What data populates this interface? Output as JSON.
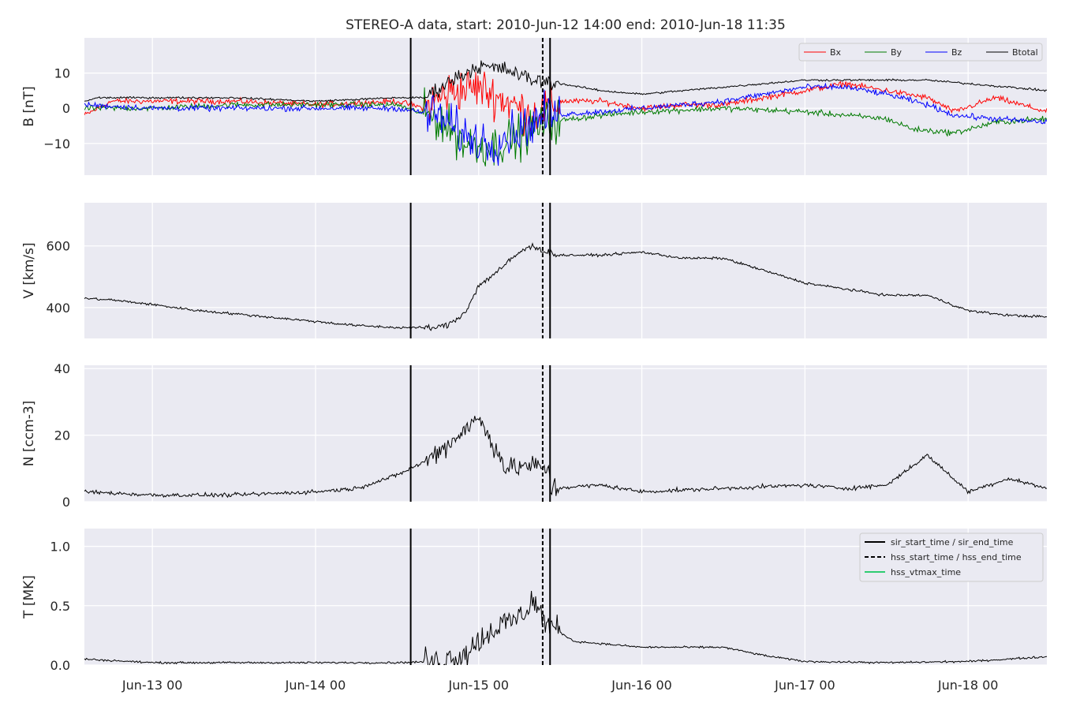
{
  "chart_data": {
    "type": "line",
    "title": "STEREO-A data, start: 2010-Jun-12 14:00  end: 2010-Jun-18 11:35",
    "time_range": {
      "start": "2010-06-12 14:00",
      "end": "2010-06-18 11:35"
    },
    "x_tick_labels": [
      "Jun-13 00",
      "Jun-14 00",
      "Jun-15 00",
      "Jun-16 00",
      "Jun-17 00",
      "Jun-18 00"
    ],
    "x_ticks": [
      "2010-06-13 00:00",
      "2010-06-14 00:00",
      "2010-06-15 00:00",
      "2010-06-16 00:00",
      "2010-06-17 00:00",
      "2010-06-18 00:00"
    ],
    "event_lines": [
      {
        "label": "sir_start_time / sir_end_time",
        "style": "solid",
        "color": "#000000",
        "times": [
          "2010-06-14 14:00",
          "2010-06-15 10:30"
        ]
      },
      {
        "label": "hss_start_time / hss_end_time",
        "style": "dashed",
        "color": "#000000",
        "times": [
          "2010-06-15 09:25"
        ]
      },
      {
        "label": "hss_vtmax_time",
        "style": "solid",
        "color": "#2ecc71",
        "times": []
      }
    ],
    "panels": [
      {
        "ylabel": "B [nT]",
        "ylim": [
          -19,
          20
        ],
        "yticks": [
          -10,
          0,
          10
        ],
        "ytick_labels": [
          "−10",
          "0",
          "10"
        ],
        "legend": {
          "position": "top-right",
          "columns": 4
        },
        "series": [
          {
            "name": "Bx",
            "color": "#ff0000",
            "points": [
              [
                "2010-06-12 14:00",
                -2
              ],
              [
                "2010-06-12 18:00",
                2
              ],
              [
                "2010-06-13 12:00",
                2
              ],
              [
                "2010-06-14 00:00",
                1
              ],
              [
                "2010-06-14 12:00",
                2
              ],
              [
                "2010-06-14 16:00",
                0
              ],
              [
                "2010-06-14 20:00",
                5
              ],
              [
                "2010-06-15 00:00",
                6
              ],
              [
                "2010-06-15 04:00",
                2
              ],
              [
                "2010-06-15 08:00",
                -2
              ],
              [
                "2010-06-15 12:00",
                2
              ],
              [
                "2010-06-15 18:00",
                2
              ],
              [
                "2010-06-16 00:00",
                0
              ],
              [
                "2010-06-16 06:00",
                1
              ],
              [
                "2010-06-16 12:00",
                1
              ],
              [
                "2010-06-17 00:00",
                5
              ],
              [
                "2010-06-17 06:00",
                7
              ],
              [
                "2010-06-17 12:00",
                5
              ],
              [
                "2010-06-17 18:00",
                3
              ],
              [
                "2010-06-17 22:00",
                -1
              ],
              [
                "2010-06-18 04:00",
                3
              ],
              [
                "2010-06-18 11:35",
                -1
              ]
            ]
          },
          {
            "name": "By",
            "color": "#007a00",
            "points": [
              [
                "2010-06-12 14:00",
                0
              ],
              [
                "2010-06-13 00:00",
                0
              ],
              [
                "2010-06-13 12:00",
                1
              ],
              [
                "2010-06-14 00:00",
                1
              ],
              [
                "2010-06-14 12:00",
                1
              ],
              [
                "2010-06-14 18:00",
                -3
              ],
              [
                "2010-06-14 22:00",
                -10
              ],
              [
                "2010-06-15 02:00",
                -11
              ],
              [
                "2010-06-15 06:00",
                -8
              ],
              [
                "2010-06-15 10:00",
                -4
              ],
              [
                "2010-06-15 18:00",
                -2
              ],
              [
                "2010-06-16 00:00",
                -1
              ],
              [
                "2010-06-16 12:00",
                0
              ],
              [
                "2010-06-17 00:00",
                -1
              ],
              [
                "2010-06-17 06:00",
                -2
              ],
              [
                "2010-06-17 12:00",
                -3
              ],
              [
                "2010-06-17 16:00",
                -6
              ],
              [
                "2010-06-17 22:00",
                -7
              ],
              [
                "2010-06-18 04:00",
                -4
              ],
              [
                "2010-06-18 11:35",
                -3
              ]
            ]
          },
          {
            "name": "Bz",
            "color": "#0000ff",
            "points": [
              [
                "2010-06-12 14:00",
                1
              ],
              [
                "2010-06-13 00:00",
                0
              ],
              [
                "2010-06-13 12:00",
                0
              ],
              [
                "2010-06-14 00:00",
                0
              ],
              [
                "2010-06-14 12:00",
                0
              ],
              [
                "2010-06-14 18:00",
                -2
              ],
              [
                "2010-06-14 22:00",
                -8
              ],
              [
                "2010-06-15 02:00",
                -10
              ],
              [
                "2010-06-15 06:00",
                -6
              ],
              [
                "2010-06-15 10:00",
                -2
              ],
              [
                "2010-06-15 18:00",
                -1
              ],
              [
                "2010-06-16 00:00",
                0
              ],
              [
                "2010-06-16 12:00",
                2
              ],
              [
                "2010-06-17 00:00",
                6
              ],
              [
                "2010-06-17 06:00",
                6
              ],
              [
                "2010-06-17 12:00",
                4
              ],
              [
                "2010-06-17 18:00",
                1
              ],
              [
                "2010-06-17 22:00",
                -2
              ],
              [
                "2010-06-18 04:00",
                -3
              ],
              [
                "2010-06-18 11:35",
                -4
              ]
            ]
          },
          {
            "name": "Btotal",
            "color": "#000000",
            "points": [
              [
                "2010-06-12 14:00",
                2
              ],
              [
                "2010-06-12 16:00",
                3
              ],
              [
                "2010-06-13 00:00",
                3
              ],
              [
                "2010-06-13 12:00",
                3
              ],
              [
                "2010-06-14 00:00",
                2
              ],
              [
                "2010-06-14 12:00",
                3
              ],
              [
                "2010-06-14 16:00",
                3
              ],
              [
                "2010-06-14 20:00",
                8
              ],
              [
                "2010-06-15 00:00",
                12
              ],
              [
                "2010-06-15 04:00",
                11
              ],
              [
                "2010-06-15 08:00",
                8
              ],
              [
                "2010-06-15 12:00",
                7
              ],
              [
                "2010-06-15 18:00",
                5
              ],
              [
                "2010-06-16 00:00",
                4
              ],
              [
                "2010-06-16 06:00",
                5
              ],
              [
                "2010-06-16 12:00",
                6
              ],
              [
                "2010-06-17 00:00",
                8
              ],
              [
                "2010-06-17 06:00",
                8
              ],
              [
                "2010-06-17 12:00",
                8
              ],
              [
                "2010-06-17 18:00",
                8
              ],
              [
                "2010-06-18 00:00",
                7
              ],
              [
                "2010-06-18 06:00",
                6
              ],
              [
                "2010-06-18 11:35",
                5
              ]
            ]
          }
        ]
      },
      {
        "ylabel": "V [km/s]",
        "ylim": [
          300,
          740
        ],
        "yticks": [
          400,
          600
        ],
        "ytick_labels": [
          "400",
          "600"
        ],
        "series": [
          {
            "name": "",
            "color": "#000000",
            "points": [
              [
                "2010-06-12 14:00",
                430
              ],
              [
                "2010-06-12 18:00",
                425
              ],
              [
                "2010-06-13 00:00",
                410
              ],
              [
                "2010-06-13 06:00",
                392
              ],
              [
                "2010-06-13 12:00",
                380
              ],
              [
                "2010-06-14 00:00",
                355
              ],
              [
                "2010-06-14 06:00",
                342
              ],
              [
                "2010-06-14 12:00",
                335
              ],
              [
                "2010-06-14 18:00",
                335
              ],
              [
                "2010-06-14 20:00",
                350
              ],
              [
                "2010-06-14 22:00",
                385
              ],
              [
                "2010-06-15 00:00",
                470
              ],
              [
                "2010-06-15 04:00",
                540
              ],
              [
                "2010-06-15 06:00",
                580
              ],
              [
                "2010-06-15 08:00",
                600
              ],
              [
                "2010-06-15 10:00",
                580
              ],
              [
                "2010-06-15 12:00",
                570
              ],
              [
                "2010-06-15 18:00",
                570
              ],
              [
                "2010-06-16 00:00",
                580
              ],
              [
                "2010-06-16 06:00",
                560
              ],
              [
                "2010-06-16 12:00",
                560
              ],
              [
                "2010-06-16 18:00",
                520
              ],
              [
                "2010-06-17 00:00",
                480
              ],
              [
                "2010-06-17 06:00",
                460
              ],
              [
                "2010-06-17 12:00",
                440
              ],
              [
                "2010-06-17 18:00",
                440
              ],
              [
                "2010-06-18 00:00",
                390
              ],
              [
                "2010-06-18 06:00",
                375
              ],
              [
                "2010-06-18 11:35",
                370
              ]
            ]
          }
        ]
      },
      {
        "ylabel": "N [ccm-3]",
        "ylim": [
          0,
          41
        ],
        "yticks": [
          0,
          20,
          40
        ],
        "ytick_labels": [
          "0",
          "20",
          "40"
        ],
        "series": [
          {
            "name": "",
            "color": "#000000",
            "points": [
              [
                "2010-06-12 14:00",
                3
              ],
              [
                "2010-06-13 00:00",
                2
              ],
              [
                "2010-06-13 12:00",
                2
              ],
              [
                "2010-06-14 00:00",
                3
              ],
              [
                "2010-06-14 06:00",
                4
              ],
              [
                "2010-06-14 12:00",
                8
              ],
              [
                "2010-06-14 16:00",
                12
              ],
              [
                "2010-06-14 20:00",
                18
              ],
              [
                "2010-06-14 22:00",
                22
              ],
              [
                "2010-06-15 00:00",
                25
              ],
              [
                "2010-06-15 02:00",
                18
              ],
              [
                "2010-06-15 04:00",
                10
              ],
              [
                "2010-06-15 08:00",
                11
              ],
              [
                "2010-06-15 10:30",
                9
              ],
              [
                "2010-06-15 10:35",
                4
              ],
              [
                "2010-06-15 18:00",
                5
              ],
              [
                "2010-06-16 00:00",
                3
              ],
              [
                "2010-06-16 12:00",
                4
              ],
              [
                "2010-06-17 00:00",
                5
              ],
              [
                "2010-06-17 06:00",
                4
              ],
              [
                "2010-06-17 12:00",
                5
              ],
              [
                "2010-06-17 18:00",
                14
              ],
              [
                "2010-06-18 00:00",
                3
              ],
              [
                "2010-06-18 06:00",
                7
              ],
              [
                "2010-06-18 11:35",
                4
              ]
            ]
          }
        ]
      },
      {
        "ylabel": "T [MK]",
        "ylim": [
          0,
          1.15
        ],
        "yticks": [
          0.0,
          0.5,
          1.0
        ],
        "ytick_labels": [
          "0.0",
          "0.5",
          "1.0"
        ],
        "legend": {
          "position": "top-right",
          "columns": 1
        },
        "series": [
          {
            "name": "",
            "color": "#000000",
            "points": [
              [
                "2010-06-12 14:00",
                0.05
              ],
              [
                "2010-06-13 00:00",
                0.02
              ],
              [
                "2010-06-13 12:00",
                0.02
              ],
              [
                "2010-06-14 00:00",
                0.02
              ],
              [
                "2010-06-14 12:00",
                0.02
              ],
              [
                "2010-06-14 18:00",
                0.03
              ],
              [
                "2010-06-14 22:00",
                0.1
              ],
              [
                "2010-06-15 02:00",
                0.3
              ],
              [
                "2010-06-15 06:00",
                0.4
              ],
              [
                "2010-06-15 08:00",
                0.55
              ],
              [
                "2010-06-15 10:00",
                0.35
              ],
              [
                "2010-06-15 14:00",
                0.2
              ],
              [
                "2010-06-16 00:00",
                0.15
              ],
              [
                "2010-06-16 06:00",
                0.15
              ],
              [
                "2010-06-16 12:00",
                0.15
              ],
              [
                "2010-06-16 18:00",
                0.08
              ],
              [
                "2010-06-17 00:00",
                0.03
              ],
              [
                "2010-06-17 12:00",
                0.02
              ],
              [
                "2010-06-18 00:00",
                0.03
              ],
              [
                "2010-06-18 11:35",
                0.07
              ]
            ]
          }
        ]
      }
    ]
  }
}
